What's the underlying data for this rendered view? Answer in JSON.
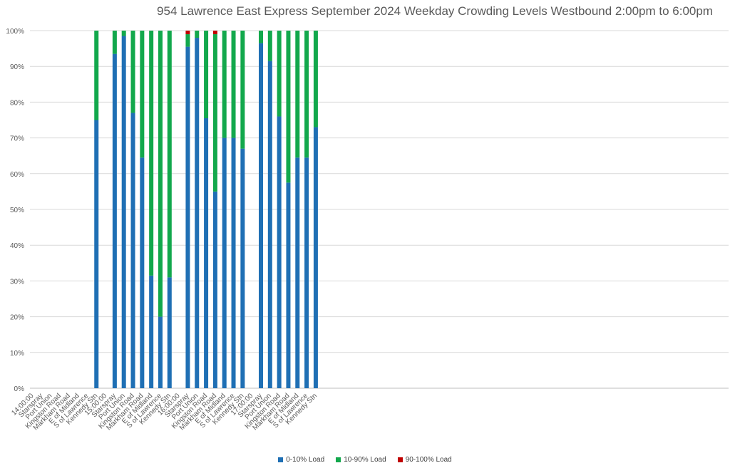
{
  "chart_data": {
    "type": "bar",
    "stacked": true,
    "title": "954 Lawrence East Express September 2024  Weekday Crowding Levels Westbound 2:00pm to 6:00pm",
    "xlabel": "",
    "ylabel": "",
    "ylim": [
      0,
      100
    ],
    "y_ticks": [
      "0%",
      "10%",
      "20%",
      "30%",
      "40%",
      "50%",
      "60%",
      "70%",
      "80%",
      "90%",
      "100%"
    ],
    "grid": true,
    "legend_position": "bottom",
    "categories": [
      "14:00:00",
      "Starspray",
      "Port Union",
      "Kingston Road",
      "Markham Road",
      "E of Midland",
      "S of Lawrence",
      "Kennedy Stn",
      "15:00:00",
      "Starspray",
      "Port Union",
      "Kingston Road",
      "Markham Road",
      "E of Midland",
      "S of Lawrence",
      "Kennedy Stn",
      "16:00:00",
      "Starspray",
      "Port Union",
      "Kingston Road",
      "Markham Road",
      "E of Midland",
      "S of Lawrence",
      "Kennedy Stn",
      "17:00:00",
      "Starspray",
      "Port Union",
      "Kingston Road",
      "Markham Road",
      "E of Midland",
      "S of Lawrence",
      "Kennedy Stn"
    ],
    "series": [
      {
        "name": "0-10% Load",
        "color": "#1f6fb4",
        "values": [
          null,
          null,
          null,
          null,
          null,
          null,
          null,
          75,
          null,
          93.5,
          98.5,
          77,
          64.5,
          31.5,
          20,
          31,
          null,
          95.5,
          98,
          75.5,
          55,
          70,
          70,
          67,
          null,
          96.5,
          91.5,
          76,
          57.5,
          64.5,
          64.5,
          73
        ]
      },
      {
        "name": "10-90% Load",
        "color": "#12a84c",
        "values": [
          null,
          null,
          null,
          null,
          null,
          null,
          null,
          25,
          null,
          6.5,
          1.5,
          23,
          35.5,
          68.5,
          80,
          69,
          null,
          3.5,
          2,
          24.5,
          44,
          30,
          30,
          33,
          null,
          3.5,
          8.5,
          24,
          42.5,
          35.5,
          35.5,
          27
        ]
      },
      {
        "name": "90-100% Load",
        "color": "#c00000",
        "values": [
          null,
          null,
          null,
          null,
          null,
          null,
          null,
          0,
          null,
          0,
          0,
          0,
          0,
          0,
          0,
          0,
          null,
          1,
          0,
          0,
          1,
          0,
          0,
          0,
          null,
          0,
          0,
          0,
          0,
          0,
          0,
          0
        ]
      }
    ]
  }
}
